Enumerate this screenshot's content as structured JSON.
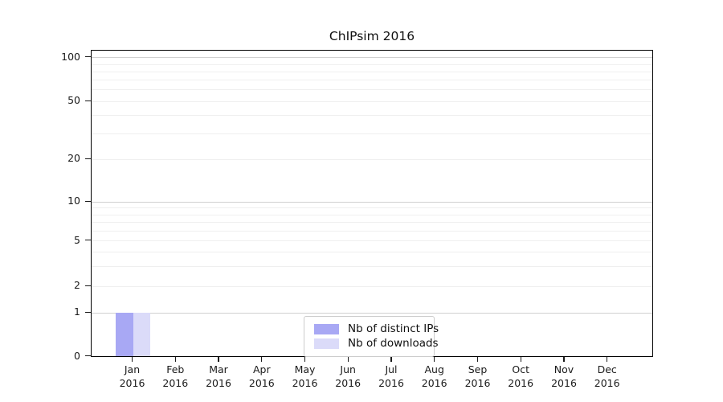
{
  "title": "ChIPsim 2016",
  "chart_data": {
    "type": "bar",
    "title": "ChIPsim 2016",
    "xlabel": "",
    "ylabel": "",
    "categories": [
      "Jan",
      "Feb",
      "Mar",
      "Apr",
      "May",
      "Jun",
      "Jul",
      "Aug",
      "Sep",
      "Oct",
      "Nov",
      "Dec"
    ],
    "year": "2016",
    "series": [
      {
        "name": "Nb of distinct IPs",
        "color": "#a8a8f4",
        "values": [
          1,
          0,
          0,
          0,
          0,
          0,
          0,
          0,
          0,
          0,
          0,
          0
        ]
      },
      {
        "name": "Nb of downloads",
        "color": "#dbdbf9",
        "values": [
          1,
          0,
          0,
          0,
          0,
          0,
          0,
          0,
          0,
          0,
          0,
          0
        ]
      }
    ],
    "y_axis": {
      "scale": "symlog",
      "ylim": [
        0,
        115
      ],
      "ticks": [
        {
          "label": "100",
          "pos": 0.0216
        },
        {
          "label": "50",
          "pos": 0.1651
        },
        {
          "label": "20",
          "pos": 0.3543
        },
        {
          "label": "10",
          "pos": 0.4946
        },
        {
          "label": "5",
          "pos": 0.6215
        },
        {
          "label": "2",
          "pos": 0.77
        },
        {
          "label": "1",
          "pos": 0.8573
        },
        {
          "label": "0",
          "pos": 1.0
        }
      ],
      "major_gridline_pos": [
        0.0216,
        0.4946,
        0.8573
      ],
      "minor_gridline_pos": [
        0.0434,
        0.0678,
        0.0955,
        0.1273,
        0.1651,
        0.2112,
        0.2706,
        0.3543,
        0.5139,
        0.5355,
        0.5599,
        0.5881,
        0.6215,
        0.6577,
        0.7043,
        0.77
      ],
      "value_pos": {
        "0": 1.0,
        "1": 0.8573
      }
    },
    "x_axis": {
      "first_center_frac": 0.0738,
      "step_frac": 0.077,
      "bar_width_frac": 0.0308
    },
    "legend": {
      "position": "lower center"
    },
    "grid": true
  },
  "colors": {
    "spine": "#000000",
    "major_grid": "#d0d0d0",
    "minor_grid": "#efefef",
    "bar_distinct_ips": "#a8a8f4",
    "bar_downloads": "#dbdbf9"
  }
}
